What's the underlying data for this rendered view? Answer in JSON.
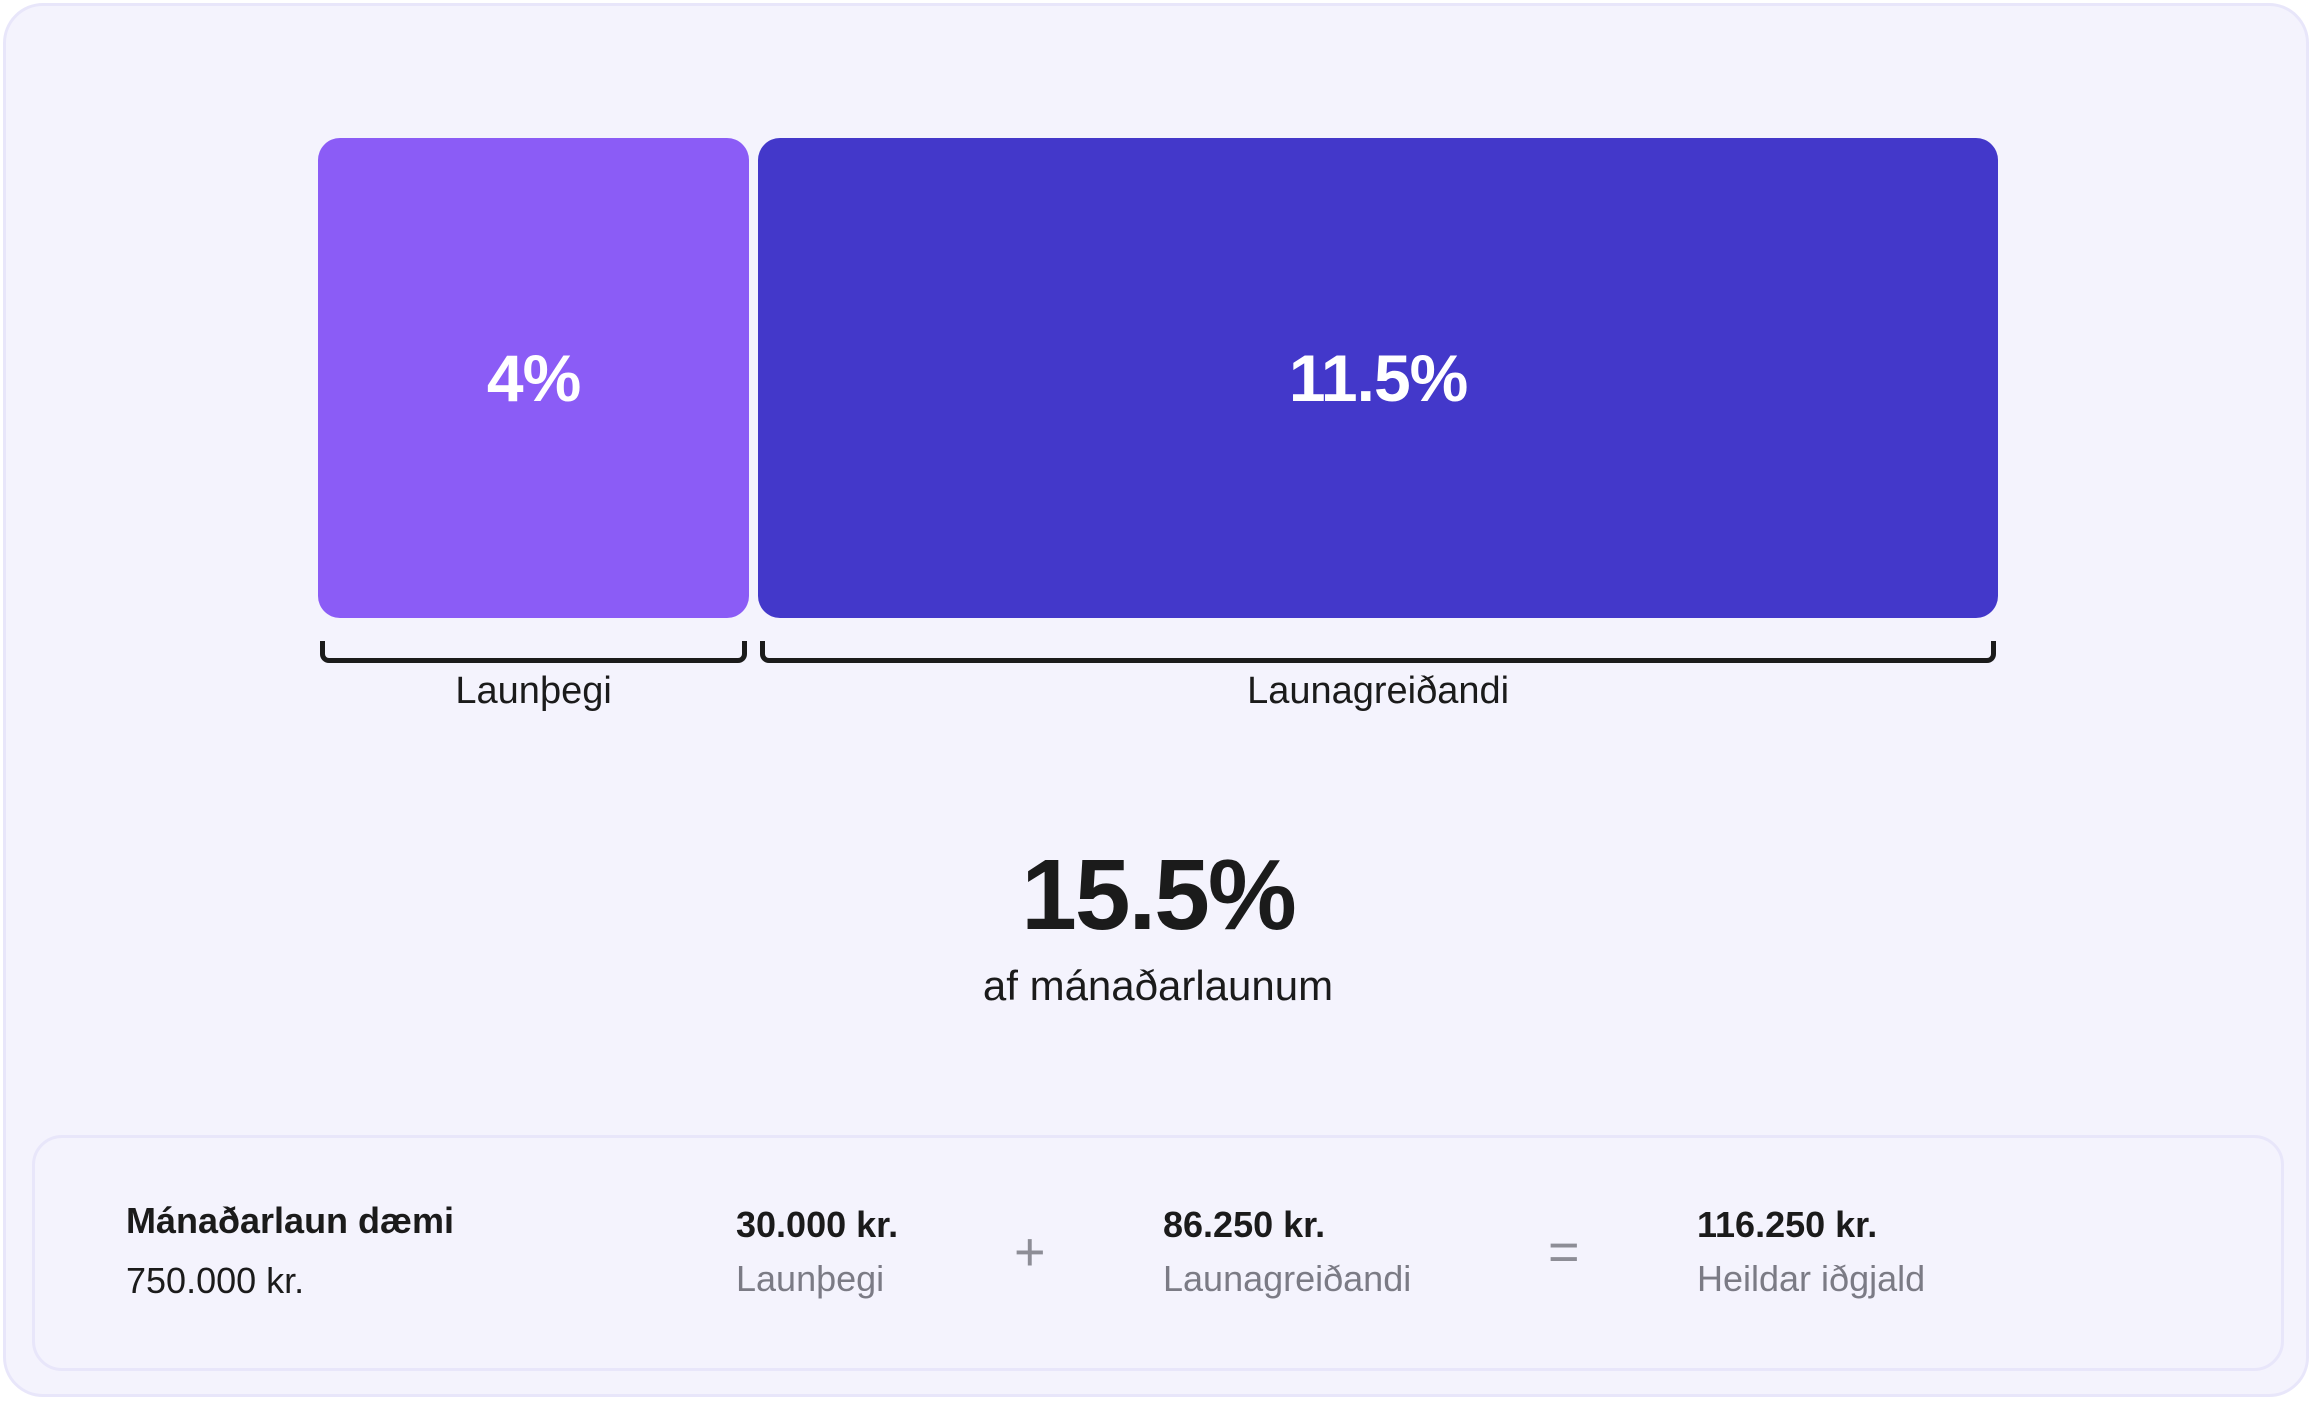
{
  "chart_data": {
    "type": "bar",
    "orientation": "horizontal-stacked",
    "categories": [
      "Launþegi",
      "Launagreiðandi"
    ],
    "values": [
      4,
      11.5
    ],
    "value_labels": [
      "4%",
      "11.5%"
    ],
    "colors": [
      "#8b5cf6",
      "#4338ca"
    ]
  },
  "total": {
    "value": "15.5%",
    "caption": "af mánaðarlaunum"
  },
  "example": {
    "title": "Mánaðarlaun dæmi",
    "salary": "750.000 kr.",
    "employee_amount": "30.000 kr.",
    "employee_label": "Launþegi",
    "plus_sign": "+",
    "employer_amount": "86.250 kr.",
    "employer_label": "Launagreiðandi",
    "equals_sign": "=",
    "total_amount": "116.250 kr.",
    "total_label": "Heildar iðgjald"
  }
}
